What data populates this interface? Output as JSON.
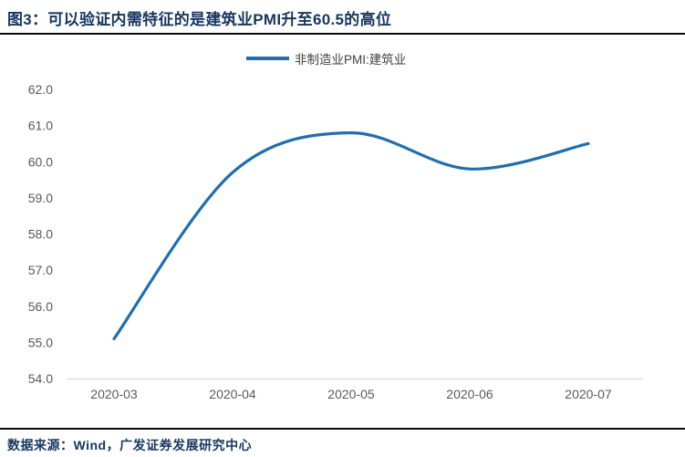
{
  "page": {
    "title": "图3：可以验证内需特征的是建筑业PMI升至60.5的高位",
    "source_note": "数据来源：Wind，广发证券发展研究中心"
  },
  "legend": {
    "label": "非制造业PMI:建筑业"
  },
  "colors": {
    "title_text": "#17375E",
    "rule": "#0A0A0A",
    "axis_label": "#595959",
    "axis_line": "#D9D9D9",
    "legend_text": "#404040",
    "background": "#FFFFFF"
  },
  "chart_data": {
    "type": "line",
    "smooth": true,
    "title": "非制造业PMI:建筑业",
    "categories": [
      "2020-03",
      "2020-04",
      "2020-05",
      "2020-06",
      "2020-07"
    ],
    "series": [
      {
        "name": "非制造业PMI:建筑业",
        "color": "#1F6EB0",
        "values": [
          55.1,
          59.7,
          60.8,
          59.8,
          60.5
        ]
      }
    ],
    "xlabel": "",
    "ylabel": "",
    "ylim": [
      54.0,
      62.0
    ],
    "ytick_step": 1.0,
    "ytick_decimals": 1,
    "grid": false,
    "legend_position": "top-center"
  }
}
